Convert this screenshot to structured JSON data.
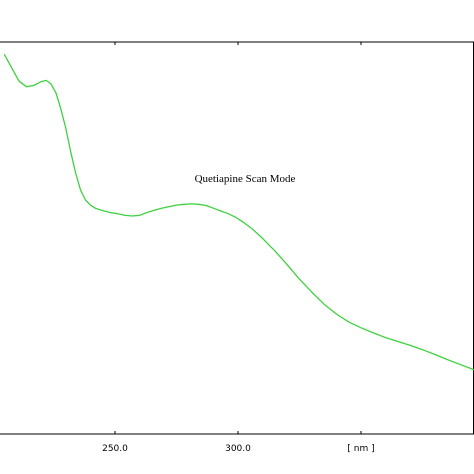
{
  "chart_data": {
    "type": "line",
    "title": "",
    "annotation": "Quetiapine Scan Mode",
    "xlabel": "[ nm ]",
    "ylabel": "",
    "x_ticks": [
      250.0,
      300.0
    ],
    "x_tick_labels": [
      "250.0",
      "300.0"
    ],
    "x_unit_label": "[ nm ]",
    "xlim": [
      205,
      400
    ],
    "ylim": [
      0,
      1
    ],
    "grid": false,
    "line_color": "#3fd13f",
    "series": [
      {
        "x": [
          205,
          208,
          211,
          214,
          217,
          220,
          222,
          224,
          226,
          228,
          230,
          232,
          234,
          236,
          238,
          240,
          242,
          245,
          248,
          251,
          254,
          257,
          260,
          263,
          266,
          269,
          272,
          275,
          278,
          281,
          284,
          287,
          290,
          293,
          296,
          299,
          302,
          306,
          310,
          315,
          320,
          325,
          330,
          335,
          340,
          345,
          350,
          355,
          360,
          365,
          370,
          375,
          380,
          385,
          390,
          395,
          400
        ],
        "y": [
          0.969,
          0.934,
          0.9,
          0.886,
          0.889,
          0.899,
          0.902,
          0.893,
          0.87,
          0.829,
          0.78,
          0.72,
          0.666,
          0.622,
          0.597,
          0.584,
          0.576,
          0.57,
          0.565,
          0.562,
          0.558,
          0.556,
          0.558,
          0.565,
          0.571,
          0.576,
          0.58,
          0.584,
          0.586,
          0.587,
          0.586,
          0.583,
          0.576,
          0.569,
          0.562,
          0.553,
          0.541,
          0.522,
          0.499,
          0.467,
          0.432,
          0.395,
          0.362,
          0.331,
          0.306,
          0.286,
          0.271,
          0.258,
          0.246,
          0.236,
          0.226,
          0.215,
          0.203,
          0.19,
          0.178,
          0.166,
          0.154
        ]
      }
    ]
  }
}
